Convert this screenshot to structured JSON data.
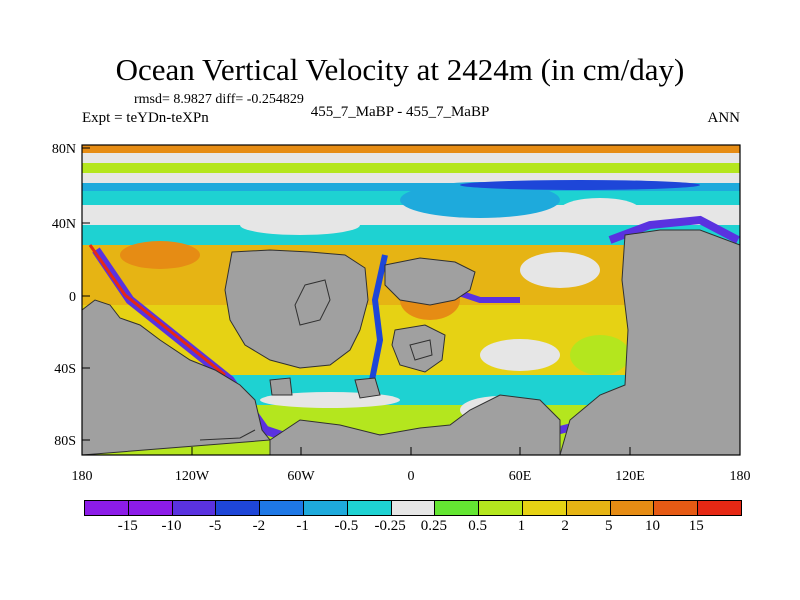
{
  "title": "Ocean Vertical Velocity at 2424m (in cm/day)",
  "stats_line": "rmsd= 8.9827 diff= -0.254829",
  "experiment_line": "Expt = teYDn-teXPn",
  "runs_line": "455_7_MaBP - 455_7_MaBP",
  "season": "ANN",
  "lat_ticks": [
    "80N",
    "40N",
    "0",
    "40S",
    "80S"
  ],
  "lon_ticks": [
    "180",
    "120W",
    "60W",
    "0",
    "60E",
    "120E",
    "180"
  ],
  "colorbar": {
    "colors": [
      "#8c1ce8",
      "#5a32e0",
      "#1e46d8",
      "#1e78e6",
      "#1eaadc",
      "#1ed2d2",
      "#e6e6e6",
      "#64e632",
      "#b4e61e",
      "#e6d214",
      "#e6b414",
      "#e68c14",
      "#e65a14",
      "#e62814"
    ],
    "labels": [
      "-15",
      "-10",
      "-5",
      "-2",
      "-1",
      "-0.5",
      "-0.25",
      "0.25",
      "0.5",
      "1",
      "2",
      "5",
      "10",
      "15"
    ]
  },
  "land_color": "#a0a0a0"
}
